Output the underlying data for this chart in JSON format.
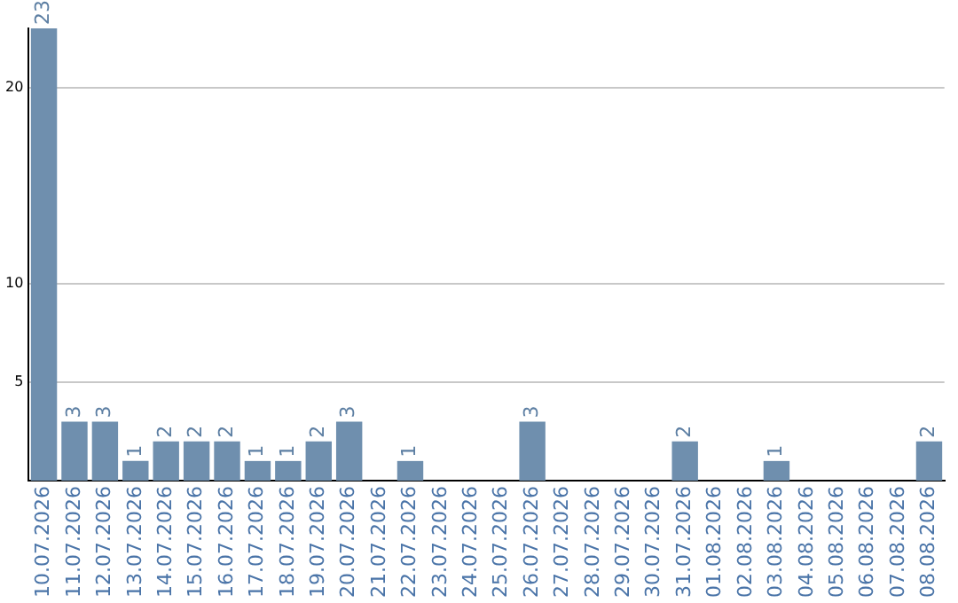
{
  "chart_data": {
    "type": "bar",
    "categories": [
      "10.07.2026",
      "11.07.2026",
      "12.07.2026",
      "13.07.2026",
      "14.07.2026",
      "15.07.2026",
      "16.07.2026",
      "17.07.2026",
      "18.07.2026",
      "19.07.2026",
      "20.07.2026",
      "21.07.2026",
      "22.07.2026",
      "23.07.2026",
      "24.07.2026",
      "25.07.2026",
      "26.07.2026",
      "27.07.2026",
      "28.07.2026",
      "29.07.2026",
      "30.07.2026",
      "31.07.2026",
      "01.08.2026",
      "02.08.2026",
      "03.08.2026",
      "04.08.2026",
      "05.08.2026",
      "06.08.2026",
      "07.08.2026",
      "08.08.2026"
    ],
    "values": [
      23,
      3,
      3,
      1,
      2,
      2,
      2,
      1,
      1,
      2,
      3,
      null,
      1,
      null,
      null,
      null,
      3,
      null,
      null,
      null,
      null,
      2,
      null,
      null,
      1,
      null,
      null,
      null,
      null,
      2
    ],
    "color": "#6f8fae",
    "ylim": [
      0,
      23
    ],
    "yticks": [
      5,
      10,
      20
    ],
    "grid": "y",
    "data_labels": true,
    "legend": false
  }
}
